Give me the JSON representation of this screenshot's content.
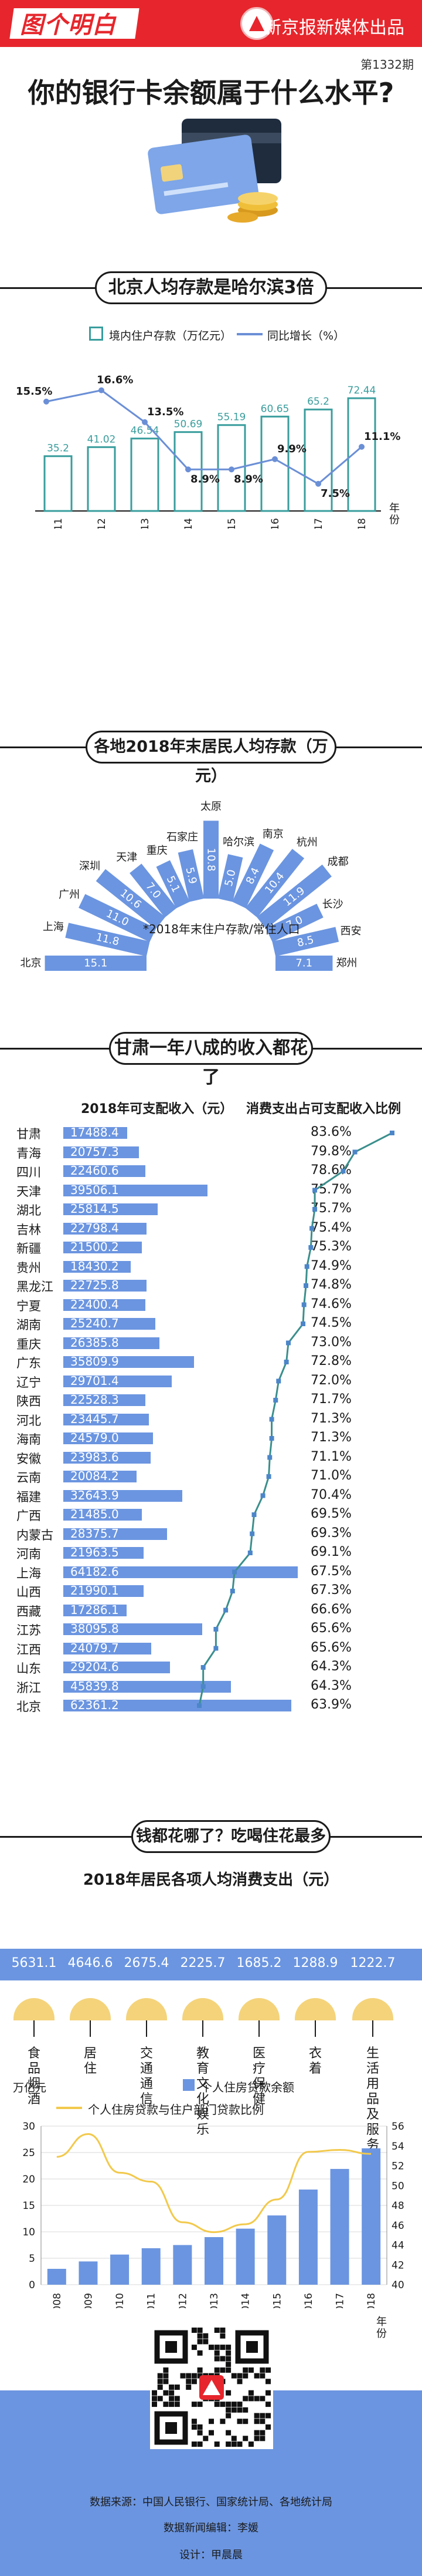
{
  "header": {
    "logo": "图个明白",
    "publisher": "新京报新媒体出品",
    "issue": "第1332期",
    "title": "你的银行卡余额属于什么水平?"
  },
  "section1": {
    "title": "北京人均存款是哈尔滨3倍",
    "legend_bar": "境内住户存款（万亿元）",
    "legend_line": "同比增长（%）",
    "year_unit": "年份"
  },
  "section2": {
    "title": "各地2018年末居民人均存款（万元）",
    "note": "*2018年末住户存款/常住人口"
  },
  "section3": {
    "title": "甘肃一年八成的收入都花了",
    "col_income": "2018年可支配收入（元）",
    "col_ratio": "消费支出占可支配收入比例"
  },
  "section4": {
    "title": "钱都花哪了？吃喝住花最多",
    "subtitle": "2018年居民各项人均消费支出（元）",
    "loan_unit": "万亿元",
    "legend_bar": "个人住房贷款余额",
    "legend_line": "个人住房贷款与住户部门贷款比例",
    "year_unit": "年份"
  },
  "footer": {
    "sources": "数据来源：中国人民银行、国家统计局、各地统计局",
    "editor": "数据新闻编辑：李媛",
    "designer": "设计：甲晨晨"
  },
  "chart_data": [
    {
      "type": "bar",
      "categories": [
        "2011",
        "2012",
        "2013",
        "2014",
        "2015",
        "2016",
        "2017",
        "2018"
      ],
      "series": [
        {
          "name": "境内住户存款（万亿元）",
          "values": [
            35.2,
            41.02,
            46.54,
            50.69,
            55.19,
            60.65,
            65.2,
            72.44
          ]
        },
        {
          "name": "同比增长（%）",
          "values": [
            15.5,
            16.6,
            13.5,
            8.9,
            8.9,
            9.9,
            7.5,
            11.1
          ]
        }
      ],
      "labels": [
        "35.2",
        "41.02",
        "46.54",
        "50.69",
        "55.19",
        "60.65",
        "65.2",
        "72.44"
      ],
      "growth_labels": [
        "15.5%",
        "16.6%",
        "13.5%",
        "8.9%",
        "8.9%",
        "9.9%",
        "7.5%",
        "11.1%"
      ],
      "xlabel": "年份",
      "grid": false,
      "legend": "top"
    },
    {
      "type": "bar",
      "categories": [
        "北京",
        "上海",
        "广州",
        "深圳",
        "天津",
        "重庆",
        "石家庄",
        "太原",
        "哈尔滨",
        "南京",
        "杭州",
        "成都",
        "长沙",
        "西安",
        "郑州"
      ],
      "values": [
        15.1,
        11.8,
        11.0,
        10.6,
        7.0,
        5.1,
        5.9,
        10.8,
        5.0,
        8.4,
        10.4,
        11.9,
        7.0,
        8.5,
        7.1
      ],
      "labels": [
        "15.1",
        "11.8",
        "11.0",
        "10.6",
        "7.0",
        "5.1",
        "5.9",
        "10.8",
        "5.0",
        "8.4",
        "10.4",
        "11.9",
        "7.0",
        "8.5",
        "7.1"
      ],
      "grid": false
    },
    {
      "type": "bar",
      "categories": [
        "甘肃",
        "青海",
        "四川",
        "天津",
        "湖北",
        "吉林",
        "新疆",
        "贵州",
        "黑龙江",
        "宁夏",
        "湖南",
        "重庆",
        "广东",
        "辽宁",
        "陕西",
        "河北",
        "海南",
        "安徽",
        "云南",
        "福建",
        "广西",
        "内蒙古",
        "河南",
        "上海",
        "山西",
        "西藏",
        "江苏",
        "江西",
        "山东",
        "浙江",
        "北京"
      ],
      "series": [
        {
          "name": "2018年可支配收入（元）",
          "values": [
            17488.4,
            20757.3,
            22460.6,
            39506.1,
            25814.5,
            22798.4,
            21500.2,
            18430.2,
            22725.8,
            22400.4,
            25240.7,
            26385.8,
            35809.9,
            29701.4,
            22528.3,
            23445.7,
            24579.0,
            23983.6,
            20084.2,
            32643.9,
            21485.0,
            28375.7,
            21963.5,
            64182.6,
            21990.1,
            17286.1,
            38095.8,
            24079.7,
            29204.6,
            45839.8,
            62361.2
          ]
        },
        {
          "name": "消费支出占可支配收入比例",
          "values": [
            83.6,
            79.8,
            78.6,
            75.7,
            75.7,
            75.4,
            75.3,
            74.9,
            74.8,
            74.6,
            74.5,
            73.0,
            72.8,
            72.0,
            71.7,
            71.3,
            71.3,
            71.1,
            71.0,
            70.4,
            69.5,
            69.3,
            69.1,
            67.5,
            67.3,
            66.6,
            65.6,
            65.6,
            64.3,
            64.3,
            63.9
          ]
        }
      ],
      "income_labels": [
        "17488.4",
        "20757.3",
        "22460.6",
        "39506.1",
        "25814.5",
        "22798.4",
        "21500.2",
        "18430.2",
        "22725.8",
        "22400.4",
        "25240.7",
        "26385.8",
        "35809.9",
        "29701.4",
        "22528.3",
        "23445.7",
        "24579.0",
        "23983.6",
        "20084.2",
        "32643.9",
        "21485.0",
        "28375.7",
        "21963.5",
        "64182.6",
        "21990.1",
        "17286.1",
        "38095.8",
        "24079.7",
        "29204.6",
        "45839.8",
        "62361.2"
      ],
      "ratio_labels": [
        "83.6%",
        "79.8%",
        "78.6%",
        "75.7%",
        "75.7%",
        "75.4%",
        "75.3%",
        "74.9%",
        "74.8%",
        "74.6%",
        "74.5%",
        "73.0%",
        "72.8%",
        "72.0%",
        "71.7%",
        "71.3%",
        "71.3%",
        "71.1%",
        "71.0%",
        "70.4%",
        "69.5%",
        "69.3%",
        "69.1%",
        "67.5%",
        "67.3%",
        "66.6%",
        "65.6%",
        "65.6%",
        "64.3%",
        "64.3%",
        "63.9%"
      ],
      "grid": false
    },
    {
      "type": "bar",
      "categories": [
        "食品烟酒",
        "居住",
        "交通通信",
        "教育文化娱乐",
        "医疗保健",
        "衣着",
        "生活用品及服务"
      ],
      "values": [
        5631.1,
        4646.6,
        2675.4,
        2225.7,
        1685.2,
        1288.9,
        1222.7
      ],
      "labels": [
        "5631.1",
        "4646.6",
        "2675.4",
        "2225.7",
        "1685.2",
        "1288.9",
        "1222.7"
      ]
    },
    {
      "type": "bar",
      "categories": [
        "2008",
        "2009",
        "2010",
        "2011",
        "2012",
        "2013",
        "2014",
        "2015",
        "2016",
        "2017",
        "2018"
      ],
      "series": [
        {
          "name": "个人住房贷款余额",
          "values": [
            3.0,
            4.4,
            5.7,
            6.9,
            7.5,
            9.0,
            10.6,
            13.1,
            18.0,
            21.9,
            25.8
          ]
        },
        {
          "name": "个人住房贷款与住户部门贷款比例",
          "values": [
            52.9,
            55.2,
            51.3,
            50.4,
            46.3,
            45.3,
            46.1,
            48.6,
            53.4,
            53.6,
            53.2
          ]
        }
      ],
      "ylim": [
        0,
        30
      ],
      "y2lim": [
        40,
        56
      ],
      "yticks": [
        "0",
        "5",
        "10",
        "15",
        "20",
        "25",
        "30"
      ],
      "y2ticks": [
        "40",
        "42",
        "44",
        "46",
        "48",
        "50",
        "52",
        "54",
        "56"
      ],
      "ylabel": "万亿元",
      "y2label": "%",
      "xlabel": "年份",
      "legend": "top"
    }
  ],
  "colors": {
    "brand_red": "#e6262c",
    "bar_blue": "#6b95e0",
    "teal": "#3a9d9d",
    "gold": "#f4d37a"
  }
}
